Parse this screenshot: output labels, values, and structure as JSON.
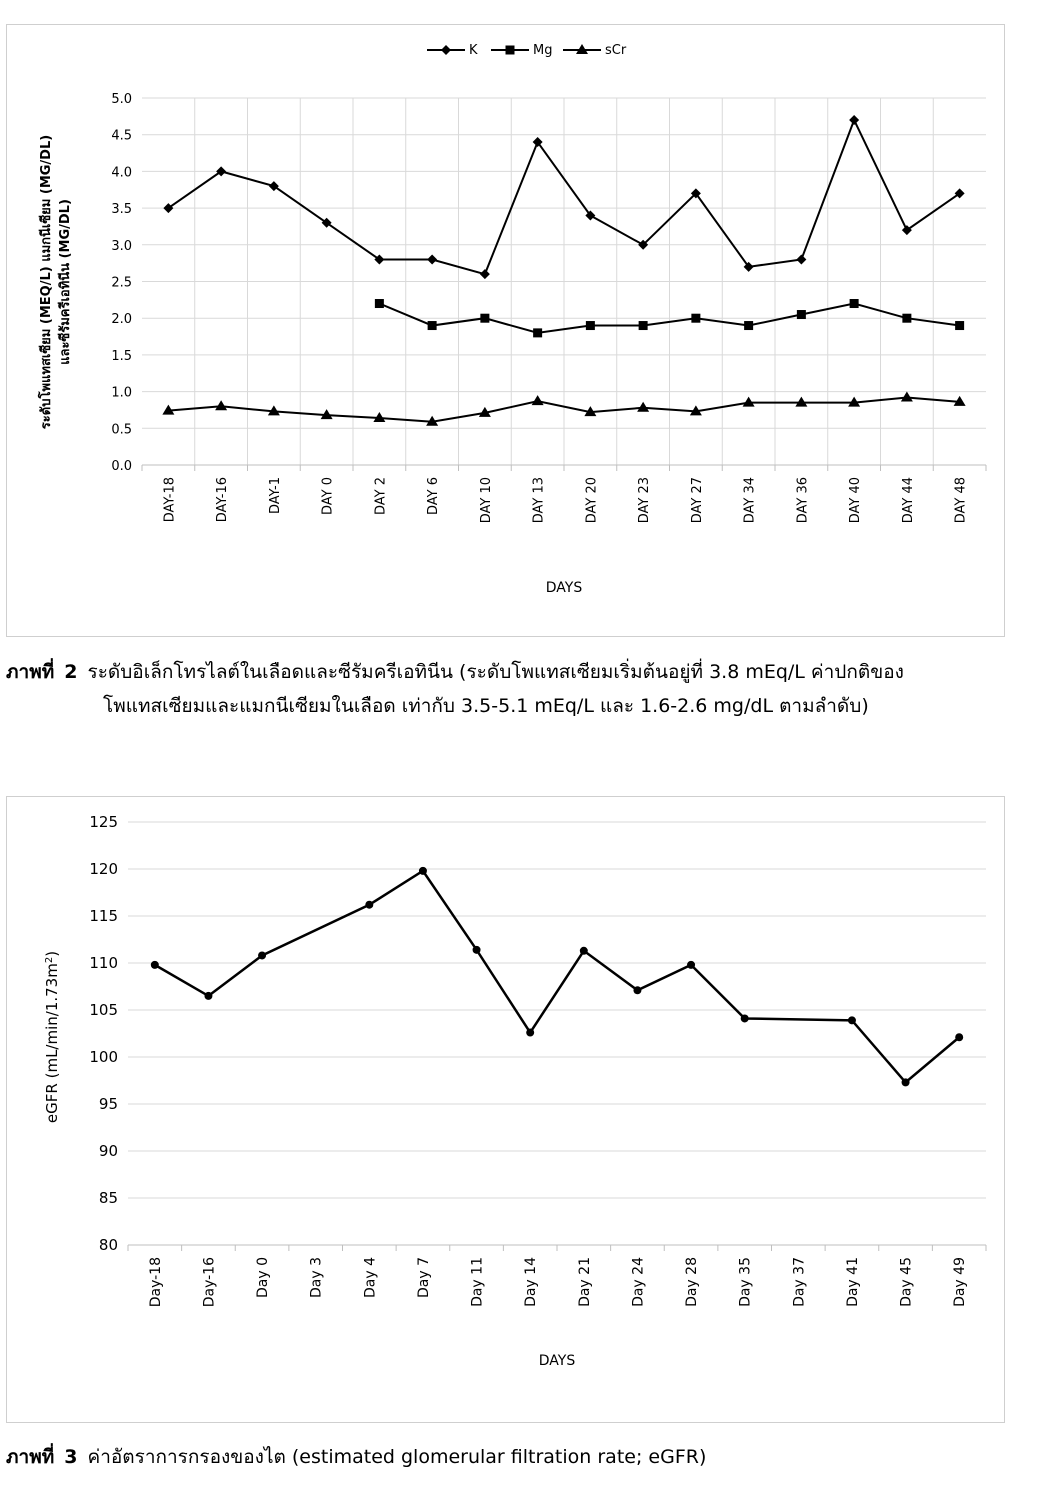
{
  "chart_data": [
    {
      "type": "line",
      "legend": [
        "K",
        "Mg",
        "sCr"
      ],
      "legend_position": "top-center",
      "ylabel": "ระดับโพแทสเซียม (MEQ/L) แมกนีเซียม (MG/DL) และซีรัมครีเอทินีน (MG/DL)",
      "ylabel_lines": [
        "ระดับโพแทสเซียม (MEQ/L) แมกนีเซียม (MG/DL)",
        "และซีรัมครีเอทินีน (MG/DL)"
      ],
      "xlabel": "DAYS",
      "ylim": [
        0,
        5
      ],
      "yticks": [
        "0.0",
        "0.5",
        "1.0",
        "1.5",
        "2.0",
        "2.5",
        "3.0",
        "3.5",
        "4.0",
        "4.5",
        "5.0"
      ],
      "categories": [
        "DAY-18",
        "DAY-16",
        "DAY-1",
        "DAY 0",
        "DAY 2",
        "DAY 6",
        "DAY 10",
        "DAY 13",
        "DAY 20",
        "DAY 23",
        "DAY 27",
        "DAY 34",
        "DAY 36",
        "DAY 40",
        "DAY 44",
        "DAY 48"
      ],
      "series": [
        {
          "name": "K",
          "marker": "diamond",
          "values": [
            3.5,
            4.0,
            3.8,
            3.3,
            2.8,
            2.8,
            2.6,
            4.4,
            3.4,
            3.0,
            3.7,
            2.7,
            2.8,
            4.7,
            3.2,
            3.7
          ]
        },
        {
          "name": "Mg",
          "marker": "square",
          "values": [
            null,
            null,
            null,
            null,
            2.2,
            1.9,
            2.0,
            1.8,
            1.9,
            1.9,
            2.0,
            1.9,
            2.05,
            2.2,
            2.0,
            1.9
          ]
        },
        {
          "name": "sCr",
          "marker": "triangle",
          "values": [
            0.74,
            0.8,
            0.73,
            0.68,
            0.64,
            0.59,
            0.71,
            0.87,
            0.72,
            0.78,
            0.73,
            0.85,
            0.85,
            0.85,
            0.92,
            0.86
          ]
        }
      ]
    },
    {
      "type": "line",
      "ylabel": "eGFR (mL/min/1.73m",
      "ylabel_sup": "2",
      "ylabel_end": ")",
      "xlabel": "DAYS",
      "ylim": [
        80,
        125
      ],
      "yticks": [
        "80",
        "85",
        "90",
        "95",
        "100",
        "105",
        "110",
        "115",
        "120",
        "125"
      ],
      "categories": [
        "Day-18",
        "Day-16",
        "Day 0",
        "Day 3",
        "Day 4",
        "Day 7",
        "Day 11",
        "Day 14",
        "Day 21",
        "Day 24",
        "Day 28",
        "Day 35",
        "Day 37",
        "Day 41",
        "Day 45",
        "Day 49"
      ],
      "series": [
        {
          "name": "eGFR",
          "marker": "circle",
          "values": [
            109.8,
            106.5,
            110.8,
            null,
            116.2,
            119.8,
            111.4,
            102.6,
            111.3,
            107.1,
            109.8,
            104.1,
            null,
            103.9,
            97.3,
            102.1
          ]
        }
      ]
    }
  ],
  "captions": {
    "fig2": {
      "label": "ภาพที่",
      "number": "2",
      "line1": "ระดับอิเล็กโทรไลต์ในเลือดและซีรัมครีเอทินีน (ระดับโพแทสเซียมเริ่มต้นอยู่ที่ 3.8 mEq/L ค่าปกติของ",
      "line2": "โพแทสเซียมและแมกนีเซียมในเลือด เท่ากับ 3.5-5.1 mEq/L และ 1.6-2.6 mg/dL ตามลำดับ)"
    },
    "fig3": {
      "label": "ภาพที่",
      "number": "3",
      "text": "ค่าอัตราการกรองของไต (estimated glomerular filtration rate; eGFR)"
    }
  },
  "colors": {
    "line": "#000000",
    "grid": "#d9d9d9",
    "axis": "#bfbfbf",
    "border": "#cfcfcf"
  }
}
